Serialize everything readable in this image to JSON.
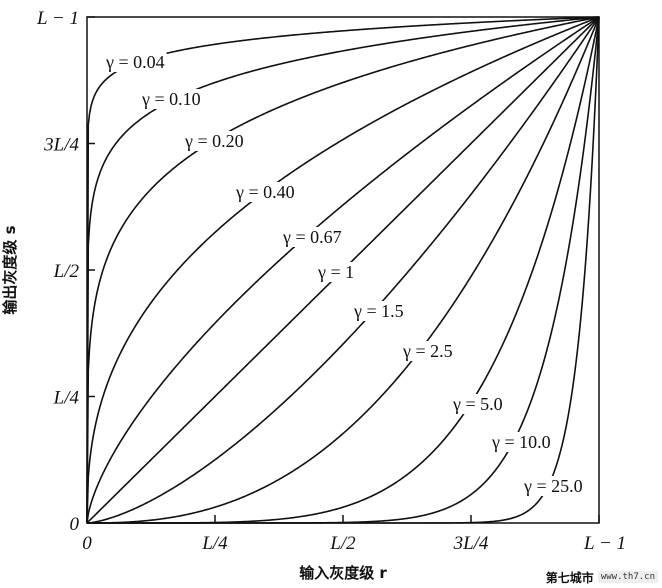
{
  "chart_data": {
    "type": "line",
    "title": "",
    "xlabel": "输入灰度级 r",
    "ylabel": "输出灰度级 s",
    "x_ticks": [
      "0",
      "L/4",
      "L/2",
      "3L/4",
      "L − 1"
    ],
    "y_ticks": [
      "0",
      "L/4",
      "L/2",
      "3L/4",
      "L − 1"
    ],
    "xlim": [
      0,
      1
    ],
    "ylim": [
      0,
      1
    ],
    "grid": false,
    "series": [
      {
        "name": "γ = 0.04",
        "gamma": 0.04,
        "label": "γ = 0.04"
      },
      {
        "name": "γ = 0.10",
        "gamma": 0.1,
        "label": "γ = 0.10"
      },
      {
        "name": "γ = 0.20",
        "gamma": 0.2,
        "label": "γ = 0.20"
      },
      {
        "name": "γ = 0.40",
        "gamma": 0.4,
        "label": "γ = 0.40"
      },
      {
        "name": "γ = 0.67",
        "gamma": 0.67,
        "label": "γ = 0.67"
      },
      {
        "name": "γ = 1",
        "gamma": 1.0,
        "label": "γ = 1"
      },
      {
        "name": "γ = 1.5",
        "gamma": 1.5,
        "label": "γ = 1.5"
      },
      {
        "name": "γ = 2.5",
        "gamma": 2.5,
        "label": "γ = 2.5"
      },
      {
        "name": "γ = 5.0",
        "gamma": 5.0,
        "label": "γ = 5.0"
      },
      {
        "name": "γ = 10.0",
        "gamma": 10.0,
        "label": "γ = 10.0"
      },
      {
        "name": "γ = 25.0",
        "gamma": 25.0,
        "label": "γ = 25.0"
      }
    ]
  },
  "watermark": {
    "text": "第七城市",
    "site": "www.th7.cn"
  }
}
